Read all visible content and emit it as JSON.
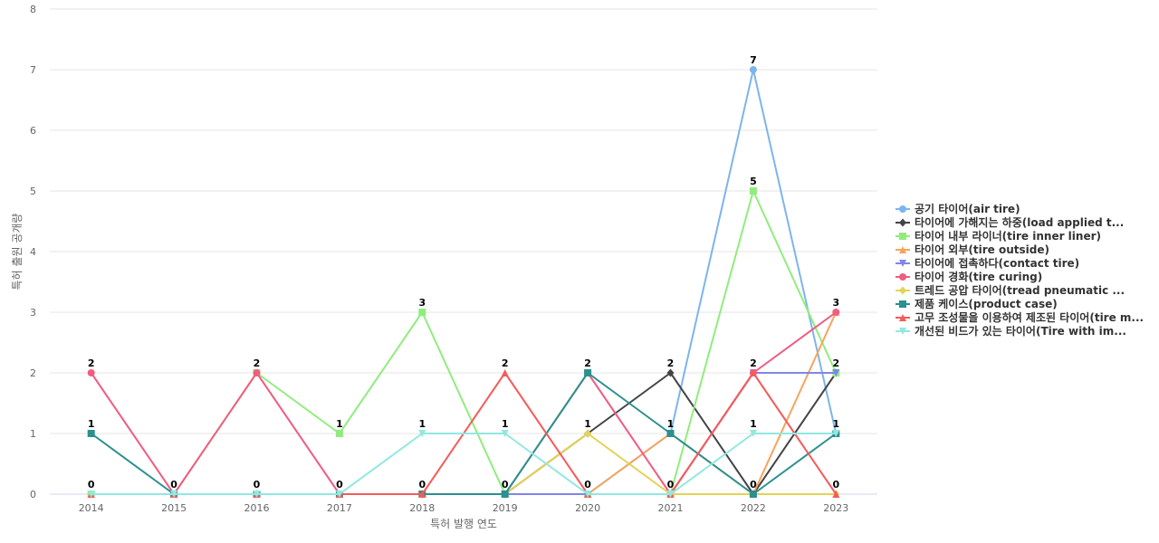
{
  "chart_data": {
    "type": "line",
    "title": "",
    "xlabel": "특허 발행 연도",
    "ylabel": "특허 출원 공개량",
    "ylim": [
      0,
      8
    ],
    "yticks": [
      0,
      1,
      2,
      3,
      4,
      5,
      6,
      7,
      8
    ],
    "categories": [
      "2014",
      "2015",
      "2016",
      "2017",
      "2018",
      "2019",
      "2020",
      "2021",
      "2022",
      "2023"
    ],
    "grid": true,
    "legend_position": "right",
    "series": [
      {
        "name": "공기 타이어(air tire)",
        "color": "#7cb5ec",
        "marker": "circle",
        "values": [
          0,
          0,
          0,
          0,
          0,
          0,
          0,
          1,
          7,
          1
        ]
      },
      {
        "name": "타이어에 가해지는 하중(load applied t...",
        "color": "#434348",
        "marker": "diamond",
        "values": [
          0,
          0,
          0,
          0,
          0,
          0,
          1,
          2,
          0,
          2
        ]
      },
      {
        "name": "타이어 내부 라이너(tire inner liner)",
        "color": "#90ed7d",
        "marker": "square",
        "values": [
          0,
          0,
          2,
          1,
          3,
          0,
          0,
          0,
          5,
          2
        ]
      },
      {
        "name": "타이어 외부(tire outside)",
        "color": "#f7a35c",
        "marker": "triangle",
        "values": [
          0,
          0,
          0,
          0,
          0,
          0,
          0,
          1,
          0,
          3
        ]
      },
      {
        "name": "타이어에 접촉하다(contact tire)",
        "color": "#8085e9",
        "marker": "triangle-down",
        "values": [
          0,
          0,
          0,
          0,
          0,
          0,
          0,
          0,
          2,
          2
        ]
      },
      {
        "name": "타이어 경화(tire curing)",
        "color": "#f15c80",
        "marker": "circle",
        "values": [
          2,
          0,
          2,
          0,
          0,
          0,
          2,
          0,
          2,
          3
        ]
      },
      {
        "name": "트레드 공압 타이어(tread pneumatic ...",
        "color": "#e4d354",
        "marker": "diamond",
        "values": [
          0,
          0,
          0,
          0,
          0,
          0,
          1,
          0,
          0,
          0
        ]
      },
      {
        "name": "제품 케이스(product case)",
        "color": "#2b908f",
        "marker": "square",
        "values": [
          1,
          0,
          0,
          0,
          0,
          0,
          2,
          1,
          0,
          1
        ]
      },
      {
        "name": "고무 조성물을 이용하여 제조된 타이어(tire m...",
        "color": "#f45b5b",
        "marker": "triangle",
        "values": [
          0,
          0,
          0,
          0,
          0,
          2,
          0,
          0,
          2,
          0
        ]
      },
      {
        "name": "개선된 비드가 있는 타이어(Tire with im...",
        "color": "#91e8e1",
        "marker": "triangle-down",
        "values": [
          0,
          0,
          0,
          0,
          1,
          1,
          0,
          0,
          1,
          1
        ]
      }
    ],
    "point_labels": [
      {
        "x": "2014",
        "y": 2,
        "text": "2"
      },
      {
        "x": "2014",
        "y": 1,
        "text": "1"
      },
      {
        "x": "2014",
        "y": 0,
        "text": "0"
      },
      {
        "x": "2015",
        "y": 0,
        "text": "0"
      },
      {
        "x": "2016",
        "y": 2,
        "text": "2"
      },
      {
        "x": "2016",
        "y": 0,
        "text": "0"
      },
      {
        "x": "2017",
        "y": 1,
        "text": "1"
      },
      {
        "x": "2017",
        "y": 0,
        "text": "0"
      },
      {
        "x": "2018",
        "y": 3,
        "text": "3"
      },
      {
        "x": "2018",
        "y": 1,
        "text": "1"
      },
      {
        "x": "2018",
        "y": 0,
        "text": "0"
      },
      {
        "x": "2019",
        "y": 2,
        "text": "2"
      },
      {
        "x": "2019",
        "y": 1,
        "text": "1"
      },
      {
        "x": "2019",
        "y": 0,
        "text": "0"
      },
      {
        "x": "2020",
        "y": 2,
        "text": "2"
      },
      {
        "x": "2020",
        "y": 1,
        "text": "1"
      },
      {
        "x": "2020",
        "y": 0,
        "text": "0"
      },
      {
        "x": "2021",
        "y": 2,
        "text": "2"
      },
      {
        "x": "2021",
        "y": 1,
        "text": "1"
      },
      {
        "x": "2021",
        "y": 0,
        "text": "0"
      },
      {
        "x": "2022",
        "y": 7,
        "text": "7"
      },
      {
        "x": "2022",
        "y": 5,
        "text": "5"
      },
      {
        "x": "2022",
        "y": 2,
        "text": "2"
      },
      {
        "x": "2022",
        "y": 1,
        "text": "1"
      },
      {
        "x": "2022",
        "y": 0,
        "text": "0"
      },
      {
        "x": "2023",
        "y": 3,
        "text": "3"
      },
      {
        "x": "2023",
        "y": 2,
        "text": "2"
      },
      {
        "x": "2023",
        "y": 1,
        "text": "1"
      },
      {
        "x": "2023",
        "y": 0,
        "text": "0"
      }
    ]
  }
}
